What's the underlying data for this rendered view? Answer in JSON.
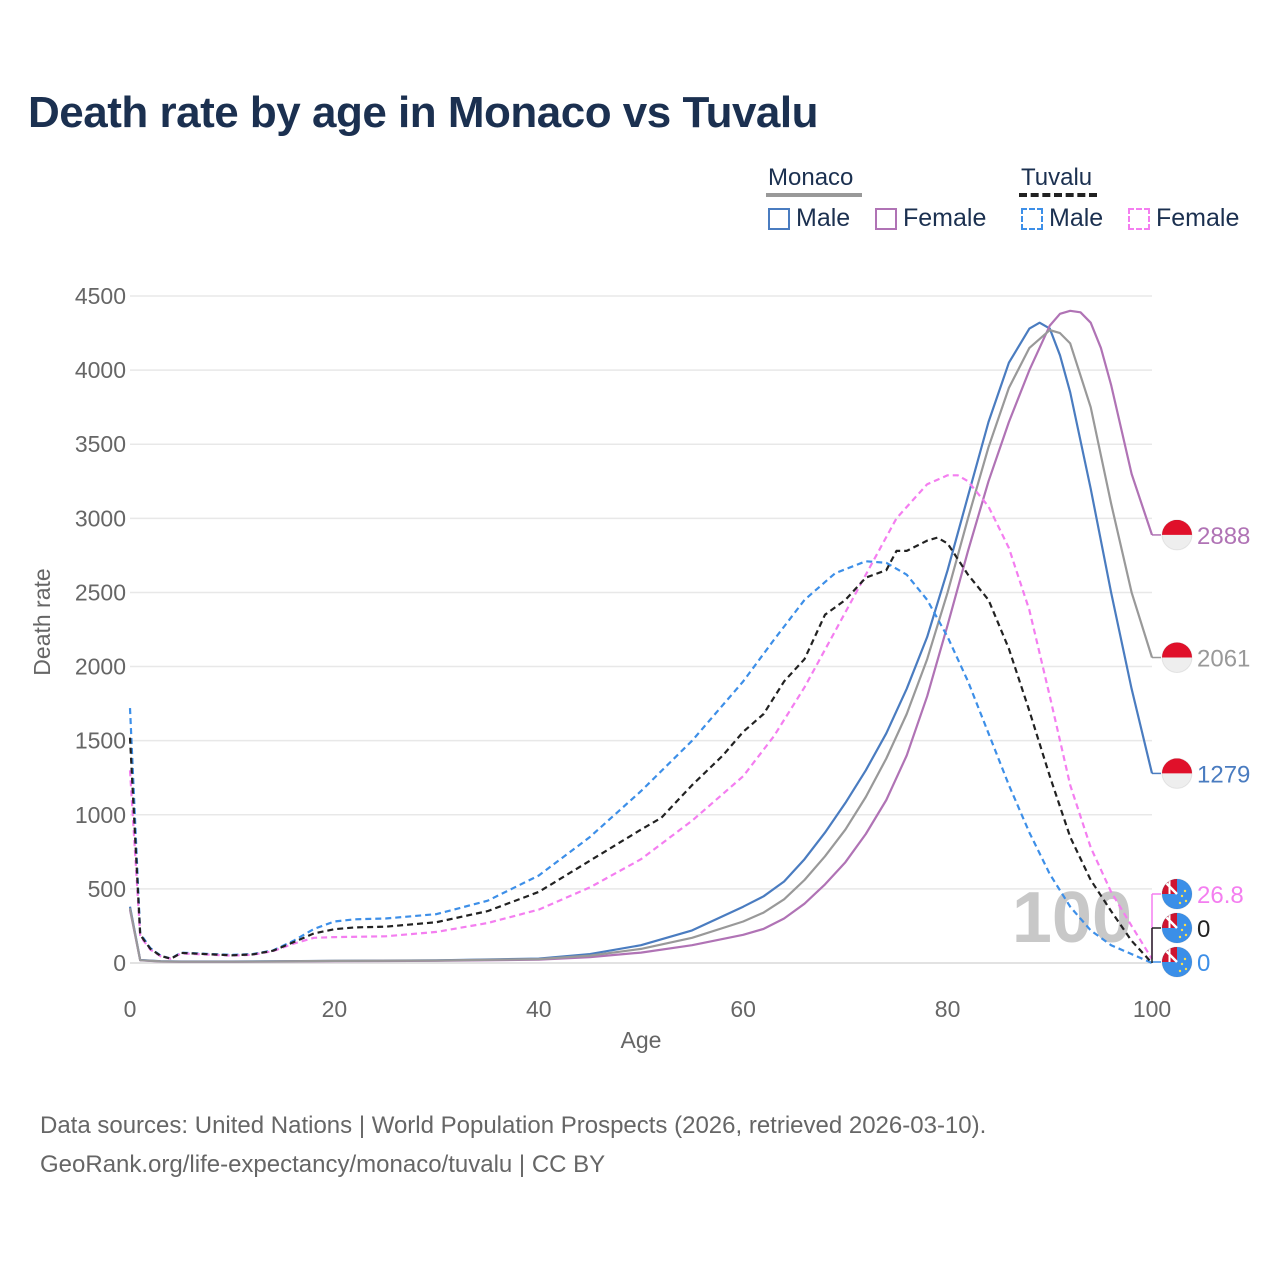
{
  "title": "Death rate by age in Monaco vs Tuvalu",
  "legend": {
    "groups": [
      {
        "name": "Monaco",
        "color": "#999999",
        "dash": "solid",
        "items": [
          {
            "label": "Male",
            "color": "#4a7cc0",
            "dash": "solid"
          },
          {
            "label": "Female",
            "color": "#b073b5",
            "dash": "solid"
          }
        ]
      },
      {
        "name": "Tuvalu",
        "color": "#222222",
        "dash": "dashed",
        "items": [
          {
            "label": "Male",
            "color": "#3d8fe8",
            "dash": "dashed"
          },
          {
            "label": "Female",
            "color": "#f47ef0",
            "dash": "dashed"
          }
        ]
      }
    ]
  },
  "watermark": "100",
  "source": {
    "line1": "Data sources: United Nations | World Population Prospects (2026, retrieved 2026-03-10).",
    "line2": "GeoRank.org/life-expectancy/monaco/tuvalu | CC BY"
  },
  "chart_data": {
    "type": "line",
    "title": "Death rate by age in Monaco vs Tuvalu",
    "xlabel": "Age",
    "ylabel": "Death rate",
    "xlim": [
      0,
      100
    ],
    "ylim": [
      0,
      4500
    ],
    "xticks": [
      0,
      20,
      40,
      60,
      80,
      100
    ],
    "yticks": [
      0,
      500,
      1000,
      1500,
      2000,
      2500,
      3000,
      3500,
      4000,
      4500
    ],
    "grid": true,
    "series": [
      {
        "name": "Monaco Male",
        "country": "Monaco",
        "sex": "Male",
        "color": "#4a7cc0",
        "dash": "solid",
        "end_label": "1279",
        "x": [
          0,
          1,
          3,
          5,
          10,
          15,
          20,
          30,
          40,
          45,
          50,
          55,
          60,
          62,
          64,
          66,
          68,
          70,
          72,
          74,
          76,
          78,
          80,
          82,
          84,
          86,
          88,
          89,
          90,
          91,
          92,
          94,
          96,
          98,
          100
        ],
        "y": [
          380,
          20,
          12,
          10,
          10,
          12,
          15,
          18,
          30,
          60,
          120,
          220,
          380,
          450,
          550,
          700,
          880,
          1080,
          1300,
          1550,
          1850,
          2200,
          2650,
          3150,
          3650,
          4050,
          4280,
          4320,
          4280,
          4100,
          3850,
          3200,
          2500,
          1850,
          1279
        ]
      },
      {
        "name": "Monaco Female",
        "country": "Monaco",
        "sex": "Female",
        "color": "#b073b5",
        "dash": "solid",
        "end_label": "2888",
        "x": [
          0,
          1,
          3,
          5,
          10,
          15,
          20,
          30,
          40,
          45,
          50,
          55,
          60,
          62,
          64,
          66,
          68,
          70,
          72,
          74,
          76,
          78,
          80,
          82,
          84,
          86,
          88,
          90,
          91,
          92,
          93,
          94,
          95,
          96,
          98,
          100
        ],
        "y": [
          360,
          18,
          10,
          8,
          8,
          10,
          12,
          15,
          22,
          40,
          70,
          120,
          190,
          230,
          300,
          400,
          530,
          680,
          870,
          1100,
          1400,
          1800,
          2280,
          2780,
          3250,
          3650,
          4000,
          4300,
          4380,
          4400,
          4390,
          4320,
          4150,
          3900,
          3300,
          2888
        ]
      },
      {
        "name": "Monaco Total",
        "country": "Monaco",
        "sex": "Total",
        "color": "#999999",
        "dash": "solid",
        "end_label": "2061",
        "x": [
          0,
          1,
          3,
          5,
          10,
          15,
          20,
          30,
          40,
          45,
          50,
          55,
          60,
          62,
          64,
          66,
          68,
          70,
          72,
          74,
          76,
          78,
          80,
          82,
          84,
          86,
          88,
          90,
          91,
          92,
          94,
          96,
          98,
          100
        ],
        "y": [
          370,
          19,
          11,
          9,
          9,
          11,
          14,
          17,
          26,
          50,
          95,
          170,
          280,
          340,
          430,
          560,
          720,
          900,
          1120,
          1380,
          1680,
          2050,
          2500,
          3000,
          3480,
          3880,
          4150,
          4270,
          4250,
          4180,
          3750,
          3100,
          2500,
          2061
        ]
      },
      {
        "name": "Tuvalu Male",
        "country": "Tuvalu",
        "sex": "Male",
        "color": "#3d8fe8",
        "dash": "dashed",
        "end_label": "0",
        "x": [
          0,
          1,
          2,
          3,
          4,
          5,
          8,
          10,
          12,
          14,
          16,
          18,
          20,
          22,
          25,
          30,
          35,
          40,
          45,
          50,
          55,
          60,
          63,
          66,
          69,
          72,
          74,
          76,
          78,
          80,
          82,
          84,
          86,
          88,
          90,
          92,
          94,
          96,
          98,
          100
        ],
        "y": [
          1720,
          200,
          100,
          50,
          30,
          70,
          60,
          55,
          60,
          85,
          150,
          230,
          280,
          295,
          300,
          330,
          420,
          590,
          850,
          1160,
          1500,
          1900,
          2180,
          2450,
          2630,
          2710,
          2700,
          2620,
          2450,
          2200,
          1900,
          1550,
          1200,
          880,
          600,
          380,
          220,
          120,
          60,
          0
        ]
      },
      {
        "name": "Tuvalu Female",
        "country": "Tuvalu",
        "sex": "Female",
        "color": "#f47ef0",
        "dash": "dashed",
        "end_label": "26.8",
        "x": [
          0,
          1,
          2,
          3,
          4,
          5,
          8,
          10,
          12,
          14,
          16,
          18,
          20,
          25,
          30,
          35,
          40,
          45,
          50,
          55,
          60,
          63,
          66,
          69,
          72,
          75,
          78,
          80,
          81,
          82,
          84,
          86,
          88,
          90,
          92,
          94,
          96,
          98,
          100
        ],
        "y": [
          1300,
          180,
          90,
          45,
          28,
          65,
          55,
          50,
          55,
          80,
          130,
          170,
          175,
          180,
          210,
          270,
          360,
          510,
          700,
          960,
          1260,
          1530,
          1860,
          2240,
          2620,
          3000,
          3230,
          3290,
          3290,
          3250,
          3080,
          2800,
          2380,
          1800,
          1200,
          780,
          480,
          250,
          26.8
        ]
      },
      {
        "name": "Tuvalu Total",
        "country": "Tuvalu",
        "sex": "Total",
        "color": "#222222",
        "dash": "dashed",
        "end_label": "0",
        "x": [
          0,
          1,
          2,
          3,
          4,
          5,
          8,
          10,
          12,
          14,
          16,
          18,
          20,
          22,
          25,
          30,
          35,
          40,
          45,
          50,
          52,
          55,
          58,
          60,
          62,
          64,
          66,
          68,
          70,
          72,
          74,
          75,
          76,
          78,
          79,
          80,
          82,
          84,
          86,
          88,
          90,
          92,
          94,
          96,
          98,
          100
        ],
        "y": [
          1520,
          190,
          95,
          48,
          29,
          68,
          58,
          52,
          58,
          83,
          140,
          200,
          228,
          240,
          245,
          275,
          350,
          480,
          690,
          900,
          980,
          1200,
          1400,
          1560,
          1680,
          1900,
          2050,
          2350,
          2450,
          2600,
          2650,
          2780,
          2780,
          2850,
          2870,
          2830,
          2620,
          2450,
          2120,
          1700,
          1260,
          850,
          560,
          350,
          150,
          0
        ]
      }
    ],
    "end_markers": [
      {
        "country": "Monaco",
        "value": "2888",
        "color": "#b073b5"
      },
      {
        "country": "Monaco",
        "value": "2061",
        "color": "#999999"
      },
      {
        "country": "Monaco",
        "value": "1279",
        "color": "#4a7cc0"
      },
      {
        "country": "Tuvalu",
        "value": "26.8",
        "color": "#f47ef0"
      },
      {
        "country": "Tuvalu",
        "value": "0",
        "color": "#222222"
      },
      {
        "country": "Tuvalu",
        "value": "0",
        "color": "#3d8fe8"
      }
    ]
  }
}
